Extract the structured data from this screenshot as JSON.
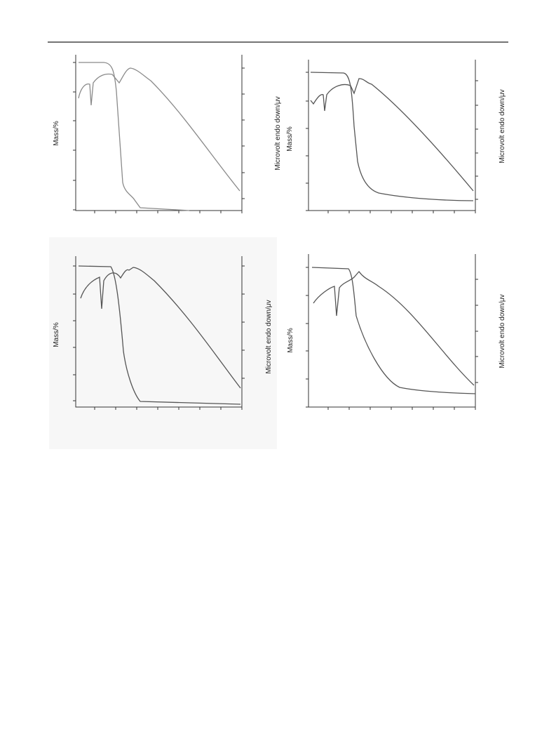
{
  "panels": [
    {
      "mass_label": "Mass/%",
      "dta_label": "Microvolt endo down/μv"
    },
    {
      "mass_label": "Mass/%",
      "dta_label": "Microvolt endo down/μv"
    },
    {
      "mass_label": "Mass/%",
      "dta_label": "Microvolt endo down/μv"
    },
    {
      "mass_label": "Mass/%",
      "dta_label": "Microvolt endo down/μv"
    }
  ]
}
